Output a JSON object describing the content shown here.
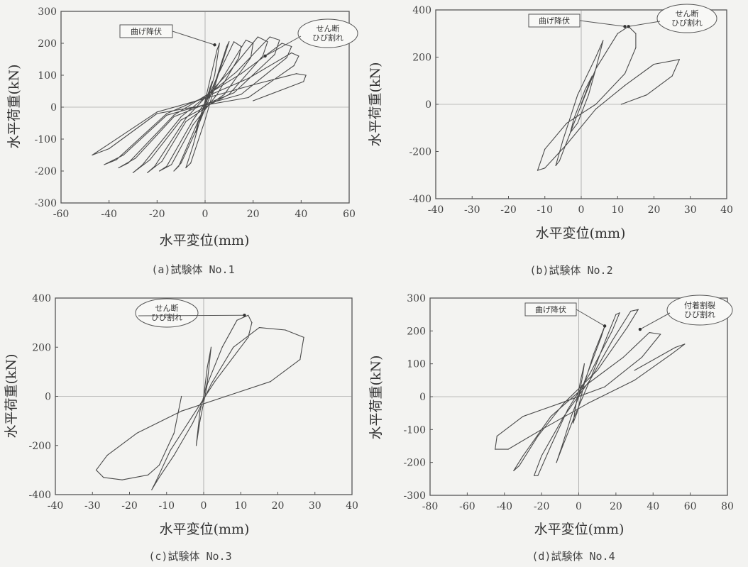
{
  "chart_data": [
    {
      "type": "line",
      "caption": "(a)試験体 No.1",
      "xlabel": "水平変位(mm)",
      "ylabel": "水平荷重(kN)",
      "xlim": [
        -60,
        60
      ],
      "ylim": [
        -300,
        300
      ],
      "xticks": [
        -60,
        -40,
        -20,
        0,
        20,
        40,
        60
      ],
      "yticks": [
        -300,
        -200,
        -100,
        0,
        100,
        200,
        300
      ],
      "xtick_labels": [
        "-60",
        "-40",
        "-20",
        "0",
        "20",
        "40",
        "60"
      ],
      "ytick_labels": [
        "-300",
        "-200",
        "-100",
        "0",
        "100",
        "200",
        "300"
      ],
      "annotations": [
        {
          "text": "曲げ降伏",
          "x": 4,
          "y": 195,
          "shape": "box"
        },
        {
          "text": "せん断\nひび割れ",
          "x": 25,
          "y": 160,
          "shape": "ellipse"
        }
      ],
      "series": [
        {
          "x": [
            0,
            2,
            3,
            -3,
            -4,
            0,
            4,
            6,
            5,
            0,
            -5,
            -8,
            -6,
            0,
            5,
            10,
            9,
            3,
            -3,
            -10,
            -13,
            -11,
            -3,
            5,
            12,
            15,
            14,
            5,
            -5,
            -14,
            -19,
            -16,
            -5,
            8,
            17,
            20,
            19,
            8,
            -8,
            -18,
            -24,
            -21,
            -8,
            10,
            22,
            26,
            24,
            10,
            -10,
            -23,
            -30,
            -26,
            -10,
            13,
            27,
            31,
            29,
            12,
            -13,
            -29,
            -36,
            -32,
            -13,
            15,
            32,
            36,
            34,
            15,
            -16,
            -34,
            -42,
            -37,
            -16,
            18,
            36,
            39,
            37,
            18,
            -20,
            -40,
            -47,
            -40,
            -20,
            20,
            38,
            42,
            41,
            20
          ],
          "y": [
            0,
            60,
            80,
            -50,
            -80,
            0,
            100,
            200,
            180,
            20,
            -120,
            -190,
            -175,
            -40,
            90,
            205,
            190,
            50,
            -60,
            -175,
            -200,
            -185,
            -45,
            95,
            205,
            190,
            155,
            40,
            -55,
            -180,
            -200,
            -185,
            -40,
            100,
            210,
            200,
            155,
            40,
            -45,
            -170,
            -205,
            -185,
            -35,
            110,
            220,
            205,
            160,
            40,
            -40,
            -165,
            -205,
            -180,
            -30,
            110,
            220,
            210,
            165,
            45,
            -30,
            -160,
            -190,
            -175,
            -25,
            105,
            200,
            190,
            155,
            40,
            -25,
            -150,
            -180,
            -165,
            -20,
            90,
            170,
            160,
            130,
            30,
            -20,
            -130,
            -150,
            -115,
            -15,
            70,
            105,
            100,
            80,
            20
          ]
        }
      ]
    },
    {
      "type": "line",
      "caption": "(b)試験体 No.2",
      "xlabel": "水平変位(mm)",
      "ylabel": "水平荷重(kN)",
      "xlim": [
        -40,
        40
      ],
      "ylim": [
        -400,
        400
      ],
      "xticks": [
        -40,
        -30,
        -20,
        -10,
        0,
        10,
        20,
        30,
        40
      ],
      "yticks": [
        -400,
        -200,
        0,
        200,
        400
      ],
      "xtick_labels": [
        "-40",
        "-30",
        "-20",
        "-10",
        "0",
        "10",
        "20",
        "30",
        "40"
      ],
      "ytick_labels": [
        "-400",
        "-200",
        "0",
        "200",
        "400"
      ],
      "annotations": [
        {
          "text": "曲げ降伏",
          "x": 12,
          "y": 330,
          "shape": "box"
        },
        {
          "text": "せん断\nひび割れ",
          "x": 13,
          "y": 330,
          "shape": "ellipse"
        }
      ],
      "series": [
        {
          "x": [
            0,
            2,
            3,
            1,
            -2,
            -3,
            -1,
            2,
            4,
            6,
            4,
            -1,
            -5,
            -7,
            -6,
            -2,
            4,
            10,
            13,
            15,
            15,
            12,
            4,
            -4,
            -10,
            -12,
            -10,
            -4,
            4,
            12,
            20,
            27,
            25,
            18,
            11
          ],
          "y": [
            0,
            80,
            120,
            60,
            -60,
            -120,
            -80,
            40,
            150,
            270,
            200,
            40,
            -150,
            -260,
            -240,
            -80,
            150,
            300,
            330,
            300,
            240,
            130,
            0,
            -80,
            -190,
            -280,
            -270,
            -170,
            -20,
            80,
            170,
            190,
            120,
            40,
            0
          ]
        }
      ]
    },
    {
      "type": "line",
      "caption": "(c)試験体 No.3",
      "xlabel": "水平変位(mm)",
      "ylabel": "水平荷重(kN)",
      "xlim": [
        -40,
        40
      ],
      "ylim": [
        -400,
        400
      ],
      "xticks": [
        -40,
        -30,
        -20,
        -10,
        0,
        10,
        20,
        30,
        40
      ],
      "yticks": [
        -400,
        -200,
        0,
        200,
        400
      ],
      "xtick_labels": [
        "-40",
        "-30",
        "-20",
        "-10",
        "0",
        "10",
        "20",
        "30",
        "40"
      ],
      "ytick_labels": [
        "-400",
        "-200",
        "0",
        "200",
        "400"
      ],
      "annotations": [
        {
          "text": "せん断\nひび割れ",
          "x": 11,
          "y": 330,
          "shape": "ellipse"
        }
      ],
      "series": [
        {
          "x": [
            0,
            1,
            2,
            1,
            0,
            -1,
            -2,
            -1,
            1,
            5,
            9,
            12,
            13,
            12,
            8,
            3,
            -3,
            -9,
            -13,
            -14,
            -12,
            -8,
            -3,
            2,
            8,
            15,
            22,
            27,
            26,
            18,
            6,
            -6,
            -18,
            -26,
            -29,
            -27,
            -22,
            -15,
            -12,
            -8,
            -6
          ],
          "y": [
            0,
            60,
            200,
            120,
            0,
            -60,
            -200,
            -100,
            50,
            200,
            310,
            330,
            300,
            240,
            160,
            60,
            -80,
            -220,
            -350,
            -380,
            -330,
            -240,
            -110,
            50,
            200,
            280,
            270,
            240,
            150,
            60,
            0,
            -60,
            -150,
            -240,
            -300,
            -330,
            -340,
            -320,
            -280,
            -150,
            0
          ]
        }
      ]
    },
    {
      "type": "line",
      "caption": "(d)試験体 No.4",
      "xlabel": "水平変位(mm)",
      "ylabel": "水平荷重(kN)",
      "xlim": [
        -80,
        80
      ],
      "ylim": [
        -300,
        300
      ],
      "xticks": [
        -80,
        -60,
        -40,
        -20,
        0,
        20,
        40,
        60,
        80
      ],
      "yticks": [
        -300,
        -200,
        -100,
        0,
        100,
        200,
        300
      ],
      "xtick_labels": [
        "-80",
        "-60",
        "-40",
        "-20",
        "0",
        "20",
        "40",
        "60",
        "80"
      ],
      "ytick_labels": [
        "-300",
        "-200",
        "-100",
        "0",
        "100",
        "200",
        "300"
      ],
      "annotations": [
        {
          "text": "曲げ降伏",
          "x": 14,
          "y": 215,
          "shape": "box"
        },
        {
          "text": "付着割裂\nひび割れ",
          "x": 33,
          "y": 205,
          "shape": "ellipse"
        }
      ],
      "series": [
        {
          "x": [
            0,
            2,
            3,
            1,
            -2,
            -3,
            -1,
            3,
            8,
            14,
            12,
            4,
            -4,
            -9,
            -12,
            -10,
            -3,
            6,
            15,
            20,
            22,
            18,
            6,
            -6,
            -15,
            -22,
            -24,
            -20,
            -8,
            6,
            18,
            28,
            32,
            26,
            10,
            -8,
            -22,
            -32,
            -35,
            -30,
            -15,
            5,
            24,
            38,
            44,
            34,
            14,
            -10,
            -30,
            -44,
            -45,
            -38,
            -20,
            5,
            30,
            50,
            57,
            52,
            30
          ],
          "y": [
            0,
            60,
            100,
            50,
            -40,
            -80,
            -50,
            40,
            130,
            215,
            180,
            60,
            -60,
            -150,
            -200,
            -170,
            -70,
            50,
            180,
            250,
            255,
            200,
            70,
            -40,
            -150,
            -240,
            -240,
            -180,
            -60,
            50,
            170,
            260,
            265,
            210,
            80,
            -20,
            -120,
            -210,
            -225,
            -180,
            -60,
            40,
            120,
            195,
            190,
            120,
            30,
            -20,
            -60,
            -120,
            -160,
            -160,
            -100,
            -20,
            50,
            130,
            160,
            150,
            80
          ]
        }
      ]
    }
  ]
}
